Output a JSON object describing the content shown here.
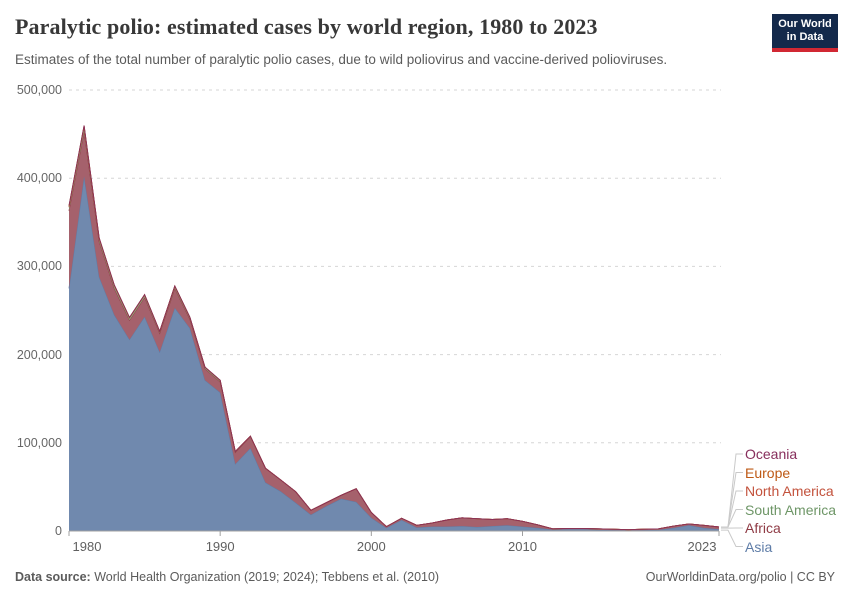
{
  "header": {
    "title": "Paralytic polio: estimated cases by world region, 1980 to 2023",
    "subtitle": "Estimates of the total number of paralytic polio cases, due to wild poliovirus and vaccine-derived polioviruses.",
    "logo": {
      "line1": "Our World",
      "line2": "in Data",
      "bg_color": "#13294b",
      "stripe_color": "#d12833"
    }
  },
  "footer": {
    "datasource_label": "Data source:",
    "datasource_text": " World Health Organization (2019; 2024); Tebbens et al. (2010)",
    "link_text": "OurWorldinData.org/polio | CC BY"
  },
  "chart_data": {
    "type": "area",
    "stacked": true,
    "title": "Paralytic polio: estimated cases by world region, 1980 to 2023",
    "xlabel": "",
    "ylabel": "",
    "xlim": [
      1980,
      2023
    ],
    "ylim": [
      0,
      500000
    ],
    "grid": "horizontal-dashed",
    "legend_position": "right",
    "yticks": [
      0,
      100000,
      200000,
      300000,
      400000,
      500000
    ],
    "ytick_labels": [
      "0",
      "100,000",
      "200,000",
      "300,000",
      "400,000",
      "500,000"
    ],
    "xticks": [
      1980,
      1990,
      2000,
      2010,
      2023
    ],
    "xtick_labels": [
      "1980",
      "1990",
      "2000",
      "2010",
      "2023"
    ],
    "x": [
      1980,
      1981,
      1982,
      1983,
      1984,
      1985,
      1986,
      1987,
      1988,
      1989,
      1990,
      1991,
      1992,
      1993,
      1994,
      1995,
      1996,
      1997,
      1998,
      1999,
      2000,
      2001,
      2002,
      2003,
      2004,
      2005,
      2006,
      2007,
      2008,
      2009,
      2010,
      2011,
      2012,
      2013,
      2014,
      2015,
      2016,
      2017,
      2018,
      2019,
      2020,
      2021,
      2022,
      2023
    ],
    "series": [
      {
        "name": "Asia",
        "color": "#5E7CA7",
        "fill": "#7089AE",
        "values": [
          275000,
          402000,
          288000,
          245000,
          217000,
          243000,
          203000,
          253000,
          230000,
          171000,
          157000,
          76000,
          94000,
          55000,
          45000,
          32000,
          18500,
          28000,
          36500,
          33000,
          15000,
          3500,
          12500,
          4000,
          5000,
          5000,
          5500,
          4500,
          5500,
          6500,
          5000,
          3500,
          1500,
          2000,
          2000,
          1300,
          1000,
          800,
          1000,
          1200,
          3500,
          6500,
          3500,
          2000
        ]
      },
      {
        "name": "Africa",
        "color": "#8F3B45",
        "fill": "#A5616C",
        "values": [
          88000,
          51000,
          40000,
          30000,
          22000,
          22000,
          21000,
          22000,
          10000,
          13000,
          12000,
          13000,
          13000,
          16000,
          13000,
          12500,
          5000,
          4000,
          4000,
          15000,
          6000,
          1500,
          2000,
          2500,
          4000,
          7500,
          9500,
          9500,
          7500,
          7500,
          6000,
          3500,
          1000,
          1000,
          1000,
          1200,
          1000,
          700,
          1000,
          1300,
          2000,
          1500,
          3000,
          2500
        ]
      },
      {
        "name": "South America",
        "color": "#6E9667",
        "fill": "#8FAB80",
        "values": [
          4000,
          5000,
          3000,
          3000,
          2500,
          2500,
          2000,
          2500,
          2000,
          1500,
          1500,
          1000,
          500,
          200,
          100,
          50,
          0,
          0,
          0,
          0,
          0,
          0,
          0,
          0,
          0,
          0,
          0,
          0,
          0,
          0,
          0,
          0,
          0,
          0,
          0,
          0,
          0,
          0,
          0,
          0,
          0,
          0,
          0,
          0
        ]
      },
      {
        "name": "North America",
        "color": "#C3523C",
        "fill": "#D08976",
        "values": [
          600,
          600,
          400,
          300,
          200,
          200,
          100,
          100,
          100,
          100,
          100,
          50,
          0,
          0,
          0,
          0,
          0,
          0,
          0,
          0,
          0,
          0,
          0,
          0,
          0,
          0,
          0,
          0,
          0,
          0,
          0,
          0,
          0,
          0,
          0,
          0,
          0,
          0,
          0,
          0,
          0,
          0,
          0,
          0
        ]
      },
      {
        "name": "Europe",
        "color": "#BE5915",
        "fill": "#D0904F",
        "values": [
          1200,
          1000,
          800,
          600,
          400,
          300,
          300,
          200,
          200,
          200,
          200,
          100,
          100,
          50,
          0,
          0,
          0,
          0,
          0,
          0,
          0,
          0,
          0,
          0,
          0,
          0,
          0,
          0,
          0,
          0,
          0,
          0,
          0,
          0,
          0,
          0,
          0,
          0,
          0,
          0,
          0,
          0,
          0,
          0
        ]
      },
      {
        "name": "Oceania",
        "color": "#872E5C",
        "fill": "#A96C93",
        "values": [
          100,
          100,
          100,
          50,
          50,
          50,
          50,
          50,
          50,
          50,
          50,
          0,
          0,
          0,
          0,
          0,
          0,
          0,
          0,
          0,
          0,
          0,
          0,
          0,
          0,
          0,
          0,
          0,
          0,
          0,
          0,
          0,
          0,
          0,
          0,
          0,
          0,
          0,
          0,
          0,
          0,
          0,
          0,
          0
        ]
      }
    ],
    "legend_top_to_bottom": [
      "Oceania",
      "Europe",
      "North America",
      "South America",
      "Africa",
      "Asia"
    ]
  }
}
